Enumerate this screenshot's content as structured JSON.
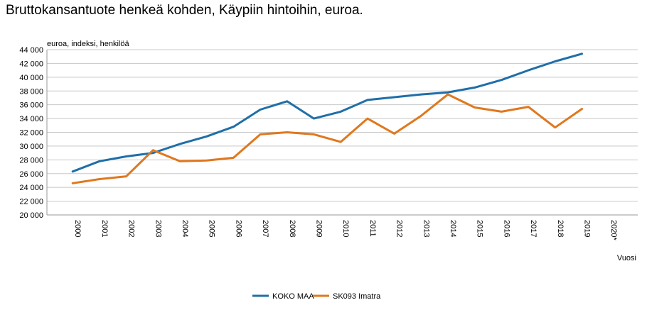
{
  "chart_data": {
    "type": "line",
    "title": "Bruttokansantuote henkeä kohden, Käypiin hintoihin, euroa.",
    "ylabel": "euroa, indeksi, henkilöä",
    "xlabel": "Vuosi",
    "categories": [
      "2000",
      "2001",
      "2002",
      "2003",
      "2004",
      "2005",
      "2006",
      "2007",
      "2008",
      "2009",
      "2010",
      "2011",
      "2012",
      "2013",
      "2014",
      "2015",
      "2016",
      "2017",
      "2018",
      "2019",
      "2020*"
    ],
    "yticks": [
      "20 000",
      "22 000",
      "24 000",
      "26 000",
      "28 000",
      "30 000",
      "32 000",
      "34 000",
      "36 000",
      "38 000",
      "40 000",
      "42 000",
      "44 000"
    ],
    "ylim": [
      20000,
      44000
    ],
    "grid": true,
    "legend_position": "bottom",
    "series": [
      {
        "name": "KOKO MAA",
        "color": "#1f6fa8",
        "values": [
          26300,
          27800,
          28500,
          29000,
          30300,
          31400,
          32800,
          35300,
          36500,
          34000,
          35000,
          36700,
          37100,
          37500,
          37800,
          38500,
          39600,
          41000,
          42300,
          43400,
          null
        ]
      },
      {
        "name": "SK093 Imatra",
        "color": "#e0781e",
        "values": [
          24600,
          25200,
          25600,
          29400,
          27800,
          27900,
          28300,
          31700,
          32000,
          31700,
          30600,
          34000,
          31800,
          34400,
          37500,
          35600,
          35000,
          35700,
          32700,
          35400,
          null
        ]
      }
    ]
  }
}
